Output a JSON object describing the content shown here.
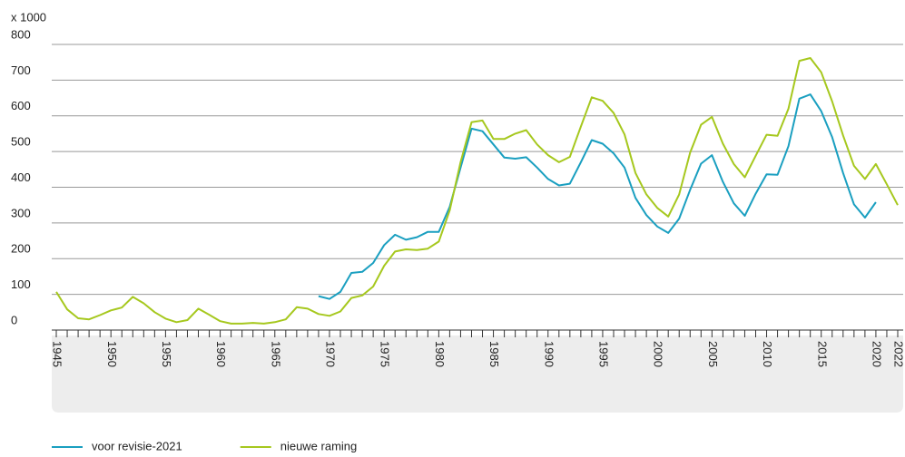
{
  "chart_data": {
    "type": "line",
    "y_axis_label": "x 1000",
    "x": [
      1945,
      1946,
      1947,
      1948,
      1949,
      1950,
      1951,
      1952,
      1953,
      1954,
      1955,
      1956,
      1957,
      1958,
      1959,
      1960,
      1961,
      1962,
      1963,
      1964,
      1965,
      1966,
      1967,
      1968,
      1969,
      1970,
      1971,
      1972,
      1973,
      1974,
      1975,
      1976,
      1977,
      1978,
      1979,
      1980,
      1981,
      1982,
      1983,
      1984,
      1985,
      1986,
      1987,
      1988,
      1989,
      1990,
      1991,
      1992,
      1993,
      1994,
      1995,
      1996,
      1997,
      1998,
      1999,
      2000,
      2001,
      2002,
      2003,
      2004,
      2005,
      2006,
      2007,
      2008,
      2009,
      2010,
      2011,
      2012,
      2013,
      2014,
      2015,
      2016,
      2017,
      2018,
      2019,
      2020,
      2021,
      2022
    ],
    "series": [
      {
        "name": "voor revisie-2021",
        "color": "#1a9fc0",
        "values": [
          null,
          null,
          null,
          null,
          null,
          null,
          null,
          null,
          null,
          null,
          null,
          null,
          null,
          null,
          null,
          null,
          null,
          null,
          null,
          null,
          null,
          null,
          null,
          null,
          95,
          87,
          107,
          160,
          163,
          188,
          238,
          267,
          253,
          260,
          275,
          275,
          345,
          455,
          564,
          557,
          520,
          483,
          480,
          484,
          455,
          423,
          405,
          410,
          470,
          532,
          522,
          495,
          455,
          370,
          322,
          290,
          272,
          312,
          393,
          466,
          490,
          415,
          355,
          320,
          382,
          436,
          435,
          515,
          648,
          660,
          613,
          540,
          440,
          352,
          315,
          358,
          null,
          null
        ]
      },
      {
        "name": "nieuwe raming",
        "color": "#a6c81e",
        "values": [
          107,
          58,
          33,
          30,
          42,
          55,
          63,
          93,
          75,
          50,
          32,
          22,
          28,
          60,
          43,
          25,
          18,
          18,
          20,
          18,
          22,
          30,
          64,
          60,
          45,
          40,
          52,
          90,
          97,
          122,
          180,
          220,
          226,
          224,
          228,
          248,
          335,
          470,
          582,
          587,
          535,
          535,
          550,
          560,
          520,
          490,
          470,
          485,
          570,
          652,
          642,
          608,
          548,
          440,
          380,
          342,
          318,
          380,
          497,
          575,
          597,
          522,
          465,
          428,
          488,
          547,
          544,
          620,
          754,
          762,
          722,
          640,
          545,
          460,
          423,
          465,
          408,
          350
        ]
      }
    ],
    "xlim": [
      1945,
      2022
    ],
    "xticks": [
      1945,
      1950,
      1955,
      1960,
      1965,
      1970,
      1975,
      1980,
      1985,
      1990,
      1995,
      2000,
      2005,
      2010,
      2015,
      2020,
      2022
    ],
    "ylim": [
      0,
      800
    ],
    "yticks": [
      0,
      100,
      200,
      300,
      400,
      500,
      600,
      700,
      800
    ],
    "grid": true
  }
}
